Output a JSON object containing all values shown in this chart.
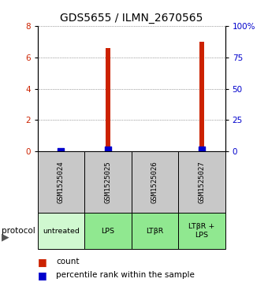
{
  "title": "GDS5655 / ILMN_2670565",
  "samples": [
    "GSM1525024",
    "GSM1525025",
    "GSM1525026",
    "GSM1525027"
  ],
  "protocols": [
    "untreated",
    "LPS",
    "LTβR",
    "LTβR +\nLPS"
  ],
  "counts": [
    0.12,
    6.6,
    0.0,
    7.0
  ],
  "percentile_ranks": [
    0.15,
    1.4,
    0.0,
    1.4
  ],
  "ylim_left": [
    0,
    8
  ],
  "ylim_right": [
    0,
    100
  ],
  "yticks_left": [
    0,
    2,
    4,
    6,
    8
  ],
  "yticks_right": [
    0,
    25,
    50,
    75,
    100
  ],
  "bar_color": "#cc2200",
  "dot_color": "#0000cc",
  "bar_width": 0.1,
  "dot_size": 30,
  "bg_color": "#ffffff",
  "plot_bg": "#ffffff",
  "grid_color": "#555555",
  "sample_box_color": "#c8c8c8",
  "protocol_box_color": "#90e890",
  "protocol_box_light": "#d0f8d0",
  "title_fontsize": 10,
  "tick_fontsize": 7.5,
  "label_fontsize": 8,
  "legend_fontsize": 7.5
}
